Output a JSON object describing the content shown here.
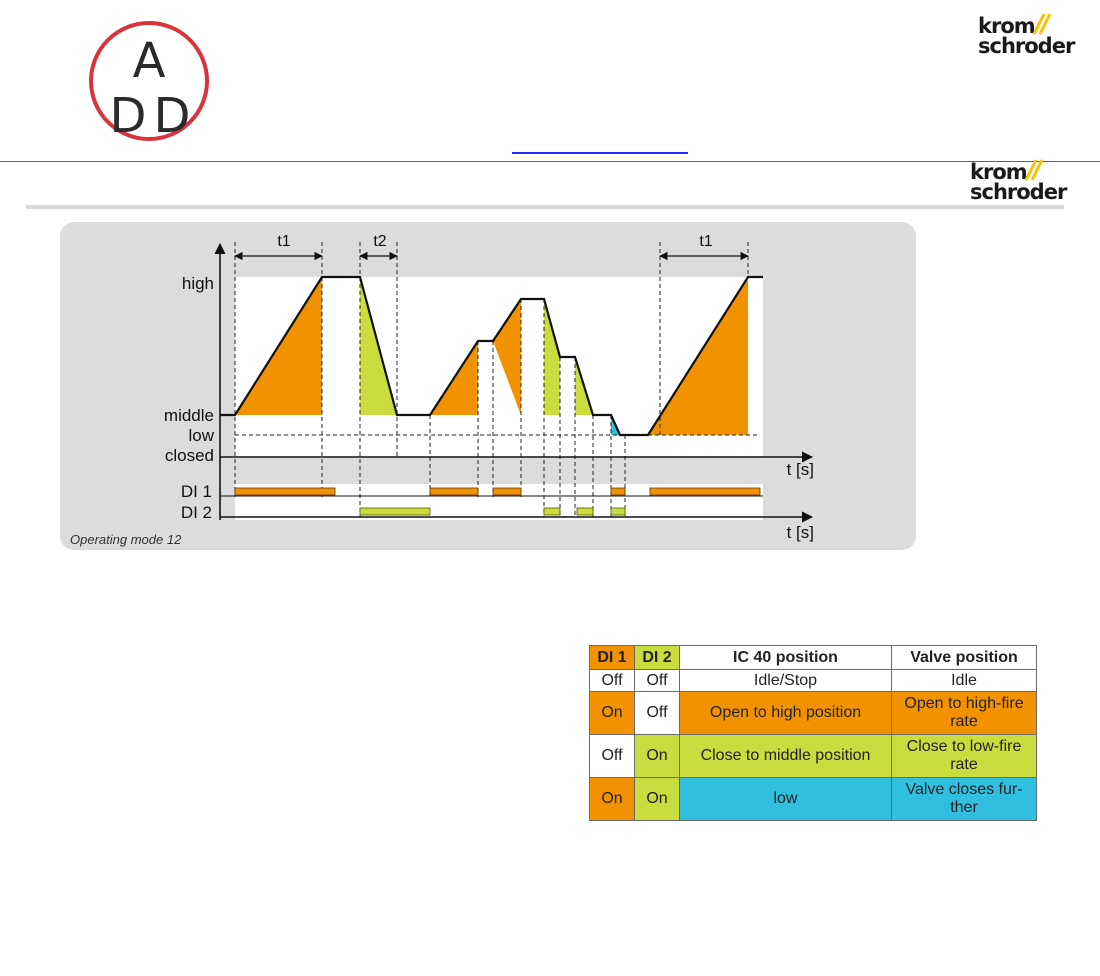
{
  "logo": {
    "letters": [
      "A",
      "D",
      "D"
    ],
    "ring_color": "#d9333b"
  },
  "brand": {
    "line1": "krom",
    "line2": "schroder",
    "accent": "#f5c400"
  },
  "diagram": {
    "y_levels": [
      "high",
      "middle",
      "low",
      "closed"
    ],
    "t_axis": "t [s]",
    "intervals": [
      "t1",
      "t2",
      "t1"
    ],
    "inputs": [
      "DI 1",
      "DI 2"
    ],
    "caption": "Operating mode 12",
    "colors": {
      "open": "#f39200",
      "close": "#c9dd3e",
      "low": "#31bfe0",
      "panel": "#dcdcdc"
    }
  },
  "table": {
    "headers": [
      "DI 1",
      "DI 2",
      "IC 40 position",
      "Valve position"
    ],
    "rows": [
      {
        "di1": "Off",
        "di2": "Off",
        "ic40": "Idle/Stop",
        "valve": "Idle"
      },
      {
        "di1": "On",
        "di2": "Off",
        "ic40": "Open to high position",
        "valve": "Open to high-fire rate"
      },
      {
        "di1": "Off",
        "di2": "On",
        "ic40": "Close to middle position",
        "valve": "Close to low-fire rate"
      },
      {
        "di1": "On",
        "di2": "On",
        "ic40": "low",
        "valve": "Valve closes fur-ther"
      }
    ]
  }
}
